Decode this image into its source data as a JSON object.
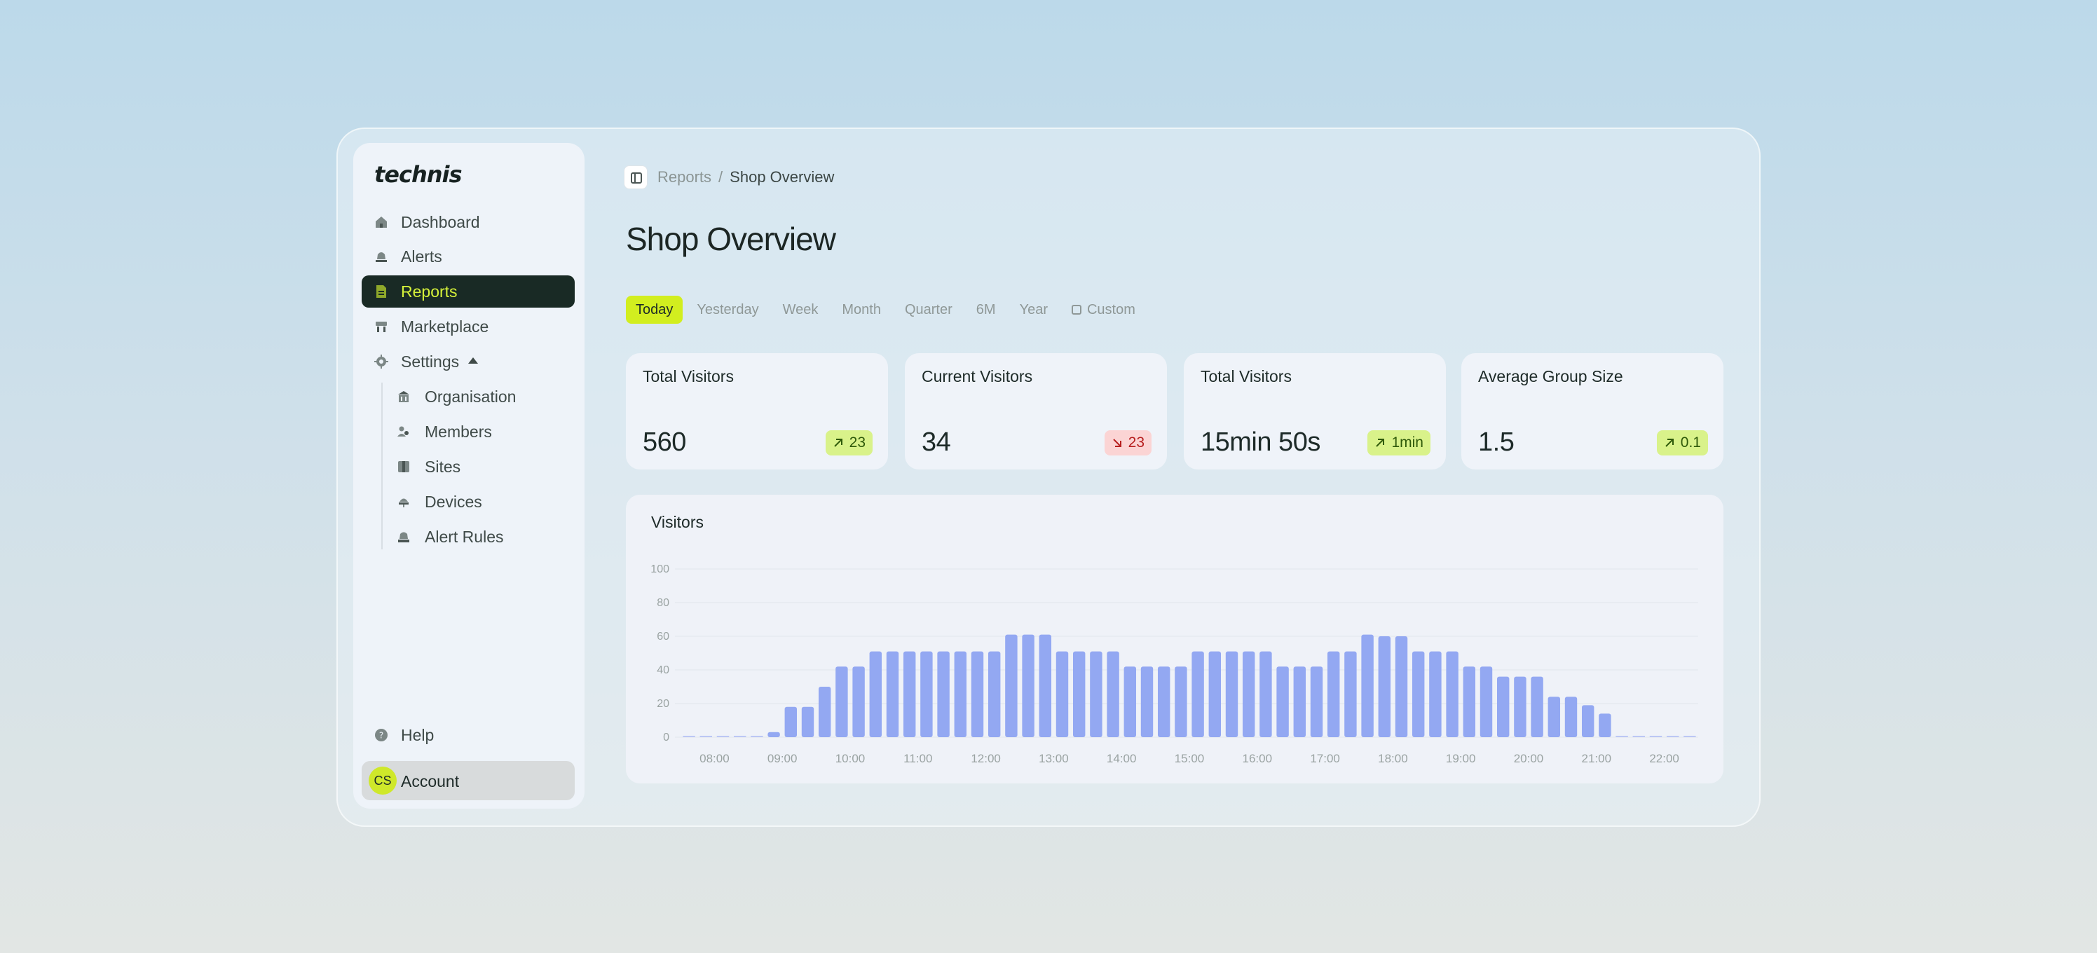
{
  "app": {
    "logo_text": "technis"
  },
  "sidebar": {
    "items": [
      {
        "label": "Dashboard",
        "icon": "home-icon"
      },
      {
        "label": "Alerts",
        "icon": "bell-icon"
      },
      {
        "label": "Reports",
        "icon": "report-icon",
        "active": true
      },
      {
        "label": "Marketplace",
        "icon": "store-icon"
      },
      {
        "label": "Settings",
        "icon": "gear-icon",
        "expanded": true
      }
    ],
    "settings_children": [
      {
        "label": "Organisation",
        "icon": "building-icon"
      },
      {
        "label": "Members",
        "icon": "users-icon"
      },
      {
        "label": "Sites",
        "icon": "map-icon"
      },
      {
        "label": "Devices",
        "icon": "device-icon"
      },
      {
        "label": "Alert Rules",
        "icon": "bell-rules-icon"
      }
    ],
    "help_label": "Help",
    "account": {
      "initials": "CS",
      "label": "Account"
    }
  },
  "header": {
    "breadcrumb": [
      "Reports",
      "Shop Overview"
    ],
    "breadcrumb_separator": "/",
    "title": "Shop Overview"
  },
  "date_ranges": {
    "options": [
      "Today",
      "Yesterday",
      "Week",
      "Month",
      "Quarter",
      "6M",
      "Year",
      "Custom"
    ],
    "selected": "Today"
  },
  "kpis": [
    {
      "title": "Total Visitors",
      "value": "560",
      "delta": "23",
      "trend": "up"
    },
    {
      "title": "Current Visitors",
      "value": "34",
      "delta": "23",
      "trend": "down"
    },
    {
      "title": "Total Visitors",
      "value": "15min 50s",
      "delta": "1min",
      "trend": "up"
    },
    {
      "title": "Average Group Size",
      "value": "1.5",
      "delta": "0.1",
      "trend": "up"
    }
  ],
  "colors": {
    "accent": "#d2ee1f",
    "active_nav_bg": "#192a25",
    "bar": "#93a8f2",
    "up_badge": "#d9f28a",
    "down_badge": "#fbd4d4"
  },
  "chart_data": {
    "type": "bar",
    "title": "Visitors",
    "ylim": [
      0,
      100
    ],
    "yticks": [
      0,
      20,
      40,
      60,
      80,
      100
    ],
    "xtick_labels": [
      "08:00",
      "09:00",
      "10:00",
      "11:00",
      "12:00",
      "13:00",
      "14:00",
      "15:00",
      "16:00",
      "17:00",
      "18:00",
      "19:00",
      "20:00",
      "21:00",
      "22:00"
    ],
    "x_start": "07:30",
    "x_step_minutes": 15,
    "values": [
      0,
      0,
      0,
      0,
      0,
      3,
      18,
      18,
      30,
      42,
      42,
      51,
      51,
      51,
      51,
      51,
      51,
      51,
      51,
      61,
      61,
      61,
      51,
      51,
      51,
      51,
      42,
      42,
      42,
      42,
      51,
      51,
      51,
      51,
      51,
      42,
      42,
      42,
      51,
      51,
      61,
      60,
      60,
      51,
      51,
      51,
      42,
      42,
      36,
      36,
      36,
      24,
      24,
      19,
      14,
      0,
      0,
      0,
      0,
      0
    ],
    "grid": true
  }
}
